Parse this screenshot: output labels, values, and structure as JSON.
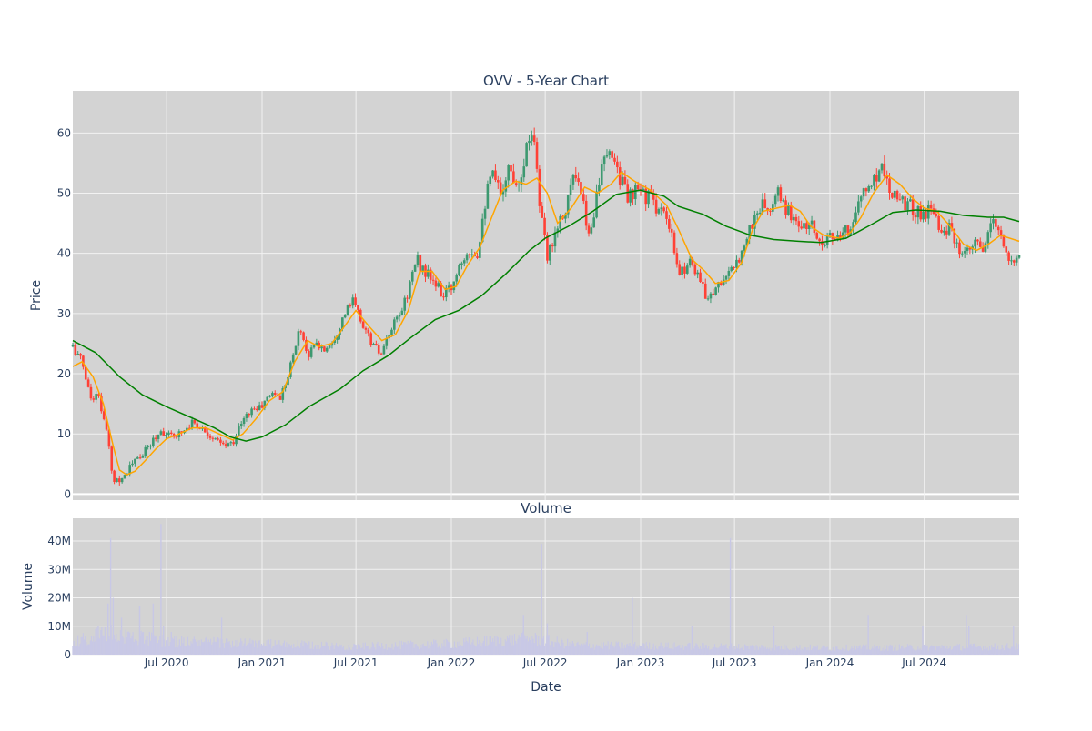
{
  "colors": {
    "plot_bg": "#d3d3d3",
    "grid": "#f2f2f2",
    "text": "#2a3f5f",
    "up": "#3d9970",
    "down": "#ff4136",
    "ma_short": "#ffa500",
    "ma_long": "#008000",
    "volume": "#c8c8e6"
  },
  "chart_data": [
    {
      "type": "candlestick",
      "title": "OVV - 5-Year Chart",
      "ylabel": "Price",
      "ylim": [
        -1,
        67
      ],
      "yticks": [
        0,
        10,
        20,
        30,
        40,
        50,
        60
      ],
      "xlim": [
        "2020-01-02",
        "2024-12-31"
      ],
      "xticks": [
        {
          "date": "2020-07-01",
          "label": "Jul 2020"
        },
        {
          "date": "2021-01-01",
          "label": "Jan 2021"
        },
        {
          "date": "2021-07-01",
          "label": "Jul 2021"
        },
        {
          "date": "2022-01-01",
          "label": "Jan 2022"
        },
        {
          "date": "2022-07-01",
          "label": "Jul 2022"
        },
        {
          "date": "2023-01-01",
          "label": "Jan 2023"
        },
        {
          "date": "2023-07-01",
          "label": "Jul 2023"
        },
        {
          "date": "2024-01-01",
          "label": "Jan 2024"
        },
        {
          "date": "2024-07-01",
          "label": "Jul 2024"
        }
      ],
      "grid": true,
      "close_series": [
        [
          "2020-01-02",
          24.5
        ],
        [
          "2020-01-20",
          22.0
        ],
        [
          "2020-02-05",
          16.0
        ],
        [
          "2020-02-20",
          16.5
        ],
        [
          "2020-03-05",
          11.0
        ],
        [
          "2020-03-12",
          8.0
        ],
        [
          "2020-03-18",
          2.6
        ],
        [
          "2020-03-30",
          2.5
        ],
        [
          "2020-04-10",
          3.0
        ],
        [
          "2020-04-25",
          5.0
        ],
        [
          "2020-05-15",
          6.5
        ],
        [
          "2020-06-05",
          9.0
        ],
        [
          "2020-06-20",
          10.5
        ],
        [
          "2020-07-10",
          9.5
        ],
        [
          "2020-08-01",
          10.5
        ],
        [
          "2020-08-20",
          12.0
        ],
        [
          "2020-09-15",
          10.5
        ],
        [
          "2020-10-01",
          9.0
        ],
        [
          "2020-10-20",
          8.0
        ],
        [
          "2020-11-05",
          8.5
        ],
        [
          "2020-11-20",
          11.5
        ],
        [
          "2020-12-10",
          14.0
        ],
        [
          "2020-12-31",
          14.5
        ],
        [
          "2021-01-20",
          17.0
        ],
        [
          "2021-02-05",
          16.0
        ],
        [
          "2021-02-20",
          20.0
        ],
        [
          "2021-03-05",
          24.0
        ],
        [
          "2021-03-15",
          28.0
        ],
        [
          "2021-03-30",
          23.0
        ],
        [
          "2021-04-15",
          25.0
        ],
        [
          "2021-05-01",
          24.0
        ],
        [
          "2021-05-20",
          26.0
        ],
        [
          "2021-06-10",
          30.0
        ],
        [
          "2021-06-25",
          32.0
        ],
        [
          "2021-07-15",
          28.0
        ],
        [
          "2021-08-01",
          25.0
        ],
        [
          "2021-08-20",
          23.0
        ],
        [
          "2021-09-05",
          27.0
        ],
        [
          "2021-09-25",
          30.0
        ],
        [
          "2021-10-10",
          34.0
        ],
        [
          "2021-10-25",
          39.0
        ],
        [
          "2021-11-10",
          37.0
        ],
        [
          "2021-11-30",
          35.0
        ],
        [
          "2021-12-15",
          33.0
        ],
        [
          "2021-12-31",
          34.0
        ],
        [
          "2022-01-15",
          38.0
        ],
        [
          "2022-02-01",
          41.0
        ],
        [
          "2022-02-20",
          40.0
        ],
        [
          "2022-03-05",
          48.0
        ],
        [
          "2022-03-20",
          53.0
        ],
        [
          "2022-04-05",
          50.0
        ],
        [
          "2022-04-20",
          54.0
        ],
        [
          "2022-05-10",
          52.0
        ],
        [
          "2022-05-25",
          57.0
        ],
        [
          "2022-06-08",
          62.0
        ],
        [
          "2022-06-20",
          48.0
        ],
        [
          "2022-07-05",
          39.0
        ],
        [
          "2022-07-20",
          44.0
        ],
        [
          "2022-08-10",
          48.0
        ],
        [
          "2022-08-25",
          53.0
        ],
        [
          "2022-09-10",
          49.0
        ],
        [
          "2022-09-25",
          42.0
        ],
        [
          "2022-10-10",
          52.0
        ],
        [
          "2022-10-25",
          55.0
        ],
        [
          "2022-11-08",
          57.0
        ],
        [
          "2022-11-25",
          52.0
        ],
        [
          "2022-12-10",
          49.0
        ],
        [
          "2022-12-31",
          50.5
        ],
        [
          "2023-01-20",
          49.0
        ],
        [
          "2023-02-10",
          47.0
        ],
        [
          "2023-03-01",
          43.0
        ],
        [
          "2023-03-15",
          36.0
        ],
        [
          "2023-04-05",
          39.0
        ],
        [
          "2023-04-20",
          37.0
        ],
        [
          "2023-05-05",
          33.0
        ],
        [
          "2023-05-25",
          34.0
        ],
        [
          "2023-06-10",
          36.0
        ],
        [
          "2023-06-30",
          37.0
        ],
        [
          "2023-07-20",
          42.0
        ],
        [
          "2023-08-05",
          45.0
        ],
        [
          "2023-08-20",
          48.0
        ],
        [
          "2023-09-10",
          47.0
        ],
        [
          "2023-09-25",
          50.0
        ],
        [
          "2023-10-10",
          47.0
        ],
        [
          "2023-10-25",
          46.0
        ],
        [
          "2023-11-10",
          44.0
        ],
        [
          "2023-11-25",
          45.0
        ],
        [
          "2023-12-10",
          42.0
        ],
        [
          "2023-12-31",
          43.0
        ],
        [
          "2024-01-20",
          42.0
        ],
        [
          "2024-02-05",
          44.0
        ],
        [
          "2024-02-20",
          47.0
        ],
        [
          "2024-03-05",
          50.0
        ],
        [
          "2024-03-25",
          52.0
        ],
        [
          "2024-04-10",
          55.0
        ],
        [
          "2024-04-25",
          51.0
        ],
        [
          "2024-05-10",
          50.0
        ],
        [
          "2024-05-30",
          48.0
        ],
        [
          "2024-06-15",
          47.0
        ],
        [
          "2024-07-01",
          46.5
        ],
        [
          "2024-07-20",
          48.0
        ],
        [
          "2024-08-05",
          43.0
        ],
        [
          "2024-08-20",
          44.0
        ],
        [
          "2024-09-10",
          39.0
        ],
        [
          "2024-09-25",
          40.0
        ],
        [
          "2024-10-10",
          42.0
        ],
        [
          "2024-10-25",
          40.0
        ],
        [
          "2024-11-10",
          46.0
        ],
        [
          "2024-11-25",
          43.0
        ],
        [
          "2024-12-10",
          38.0
        ],
        [
          "2024-12-31",
          40.0
        ]
      ],
      "ma_short": [
        [
          "2020-01-02",
          21.2
        ],
        [
          "2020-01-20",
          22.0
        ],
        [
          "2020-02-10",
          19.5
        ],
        [
          "2020-03-01",
          15.0
        ],
        [
          "2020-03-20",
          8.0
        ],
        [
          "2020-04-01",
          4.0
        ],
        [
          "2020-04-15",
          3.2
        ],
        [
          "2020-05-01",
          3.8
        ],
        [
          "2020-05-20",
          5.5
        ],
        [
          "2020-06-10",
          7.5
        ],
        [
          "2020-07-01",
          9.2
        ],
        [
          "2020-07-25",
          10.0
        ],
        [
          "2020-08-20",
          11.0
        ],
        [
          "2020-09-15",
          11.0
        ],
        [
          "2020-10-10",
          10.0
        ],
        [
          "2020-11-05",
          9.0
        ],
        [
          "2020-11-25",
          10.0
        ],
        [
          "2020-12-20",
          12.5
        ],
        [
          "2021-01-15",
          15.5
        ],
        [
          "2021-02-10",
          17.0
        ],
        [
          "2021-03-05",
          22.0
        ],
        [
          "2021-03-30",
          25.5
        ],
        [
          "2021-04-20",
          24.5
        ],
        [
          "2021-05-15",
          25.0
        ],
        [
          "2021-06-10",
          28.0
        ],
        [
          "2021-07-01",
          30.5
        ],
        [
          "2021-07-25",
          28.0
        ],
        [
          "2021-08-20",
          25.5
        ],
        [
          "2021-09-15",
          26.5
        ],
        [
          "2021-10-10",
          30.5
        ],
        [
          "2021-11-01",
          37.0
        ],
        [
          "2021-11-25",
          37.0
        ],
        [
          "2021-12-20",
          34.0
        ],
        [
          "2022-01-10",
          34.5
        ],
        [
          "2022-02-01",
          38.0
        ],
        [
          "2022-02-25",
          41.0
        ],
        [
          "2022-03-20",
          46.0
        ],
        [
          "2022-04-10",
          50.5
        ],
        [
          "2022-05-05",
          52.0
        ],
        [
          "2022-05-25",
          51.5
        ],
        [
          "2022-06-15",
          52.5
        ],
        [
          "2022-07-05",
          50.0
        ],
        [
          "2022-07-25",
          45.0
        ],
        [
          "2022-08-20",
          47.5
        ],
        [
          "2022-09-15",
          51.0
        ],
        [
          "2022-10-10",
          50.0
        ],
        [
          "2022-11-05",
          51.5
        ],
        [
          "2022-11-25",
          53.5
        ],
        [
          "2022-12-20",
          52.0
        ],
        [
          "2023-01-20",
          50.5
        ],
        [
          "2023-02-20",
          48.0
        ],
        [
          "2023-03-15",
          44.0
        ],
        [
          "2023-04-10",
          39.0
        ],
        [
          "2023-05-05",
          37.0
        ],
        [
          "2023-05-25",
          35.0
        ],
        [
          "2023-06-20",
          35.5
        ],
        [
          "2023-07-15",
          38.5
        ],
        [
          "2023-08-05",
          44.0
        ],
        [
          "2023-08-25",
          47.0
        ],
        [
          "2023-09-20",
          47.5
        ],
        [
          "2023-10-15",
          48.0
        ],
        [
          "2023-11-05",
          47.0
        ],
        [
          "2023-11-25",
          44.5
        ],
        [
          "2023-12-20",
          43.0
        ],
        [
          "2024-01-20",
          42.5
        ],
        [
          "2024-02-10",
          43.5
        ],
        [
          "2024-03-01",
          46.0
        ],
        [
          "2024-03-25",
          50.0
        ],
        [
          "2024-04-20",
          53.0
        ],
        [
          "2024-05-15",
          51.5
        ],
        [
          "2024-06-10",
          49.0
        ],
        [
          "2024-07-01",
          47.5
        ],
        [
          "2024-07-25",
          47.0
        ],
        [
          "2024-08-20",
          44.5
        ],
        [
          "2024-09-15",
          41.5
        ],
        [
          "2024-10-10",
          40.5
        ],
        [
          "2024-11-01",
          41.5
        ],
        [
          "2024-11-25",
          43.0
        ],
        [
          "2024-12-31",
          42.0
        ]
      ],
      "ma_long": [
        [
          "2020-01-02",
          25.5
        ],
        [
          "2020-02-15",
          23.5
        ],
        [
          "2020-04-01",
          19.5
        ],
        [
          "2020-05-15",
          16.5
        ],
        [
          "2020-07-01",
          14.5
        ],
        [
          "2020-08-15",
          12.8
        ],
        [
          "2020-10-01",
          11.0
        ],
        [
          "2020-11-01",
          9.5
        ],
        [
          "2020-12-01",
          8.8
        ],
        [
          "2021-01-01",
          9.5
        ],
        [
          "2021-02-15",
          11.5
        ],
        [
          "2021-04-01",
          14.5
        ],
        [
          "2021-06-01",
          17.5
        ],
        [
          "2021-07-15",
          20.5
        ],
        [
          "2021-09-01",
          23.0
        ],
        [
          "2021-10-15",
          26.0
        ],
        [
          "2021-12-01",
          29.0
        ],
        [
          "2022-01-15",
          30.5
        ],
        [
          "2022-03-01",
          33.0
        ],
        [
          "2022-04-15",
          36.5
        ],
        [
          "2022-06-01",
          40.5
        ],
        [
          "2022-07-01",
          42.5
        ],
        [
          "2022-08-15",
          44.5
        ],
        [
          "2022-10-01",
          47.0
        ],
        [
          "2022-11-15",
          49.8
        ],
        [
          "2022-12-31",
          50.5
        ],
        [
          "2023-02-15",
          49.5
        ],
        [
          "2023-03-15",
          47.8
        ],
        [
          "2023-05-01",
          46.5
        ],
        [
          "2023-06-15",
          44.5
        ],
        [
          "2023-08-01",
          43.0
        ],
        [
          "2023-09-15",
          42.3
        ],
        [
          "2023-11-01",
          42.0
        ],
        [
          "2023-12-15",
          41.8
        ],
        [
          "2024-02-01",
          42.5
        ],
        [
          "2024-03-15",
          44.5
        ],
        [
          "2024-05-01",
          46.8
        ],
        [
          "2024-06-15",
          47.2
        ],
        [
          "2024-08-01",
          47.0
        ],
        [
          "2024-09-15",
          46.3
        ],
        [
          "2024-11-01",
          46.0
        ],
        [
          "2024-12-01",
          46.0
        ],
        [
          "2024-12-31",
          45.3
        ]
      ]
    },
    {
      "type": "bar",
      "title": "Volume",
      "xlabel": "Date",
      "ylabel": "Volume",
      "ylim": [
        0,
        48000000
      ],
      "yticks": [
        {
          "value": 0,
          "label": "0"
        },
        {
          "value": 10000000,
          "label": "10M"
        },
        {
          "value": 20000000,
          "label": "20M"
        },
        {
          "value": 30000000,
          "label": "30M"
        },
        {
          "value": 40000000,
          "label": "40M"
        }
      ],
      "grid": true,
      "spikes": [
        [
          "2020-02-20",
          10000000
        ],
        [
          "2020-03-10",
          18000000
        ],
        [
          "2020-03-15",
          41000000
        ],
        [
          "2020-03-20",
          20000000
        ],
        [
          "2020-04-05",
          13000000
        ],
        [
          "2020-05-10",
          17000000
        ],
        [
          "2020-06-05",
          18000000
        ],
        [
          "2020-06-20",
          46000000
        ],
        [
          "2020-06-25",
          10000000
        ],
        [
          "2020-07-10",
          8000000
        ],
        [
          "2020-10-15",
          13000000
        ],
        [
          "2022-05-20",
          14000000
        ],
        [
          "2022-06-24",
          39000000
        ],
        [
          "2022-07-05",
          11000000
        ],
        [
          "2022-09-20",
          8000000
        ],
        [
          "2022-12-16",
          20000000
        ],
        [
          "2023-04-10",
          10000000
        ],
        [
          "2023-06-23",
          41000000
        ],
        [
          "2023-09-15",
          10000000
        ],
        [
          "2024-03-15",
          14000000
        ],
        [
          "2024-06-28",
          10000000
        ],
        [
          "2024-09-20",
          14000000
        ],
        [
          "2024-09-25",
          10000000
        ],
        [
          "2024-12-20",
          10000000
        ]
      ],
      "base_volume_levels": [
        [
          "2020-01-02",
          4500000
        ],
        [
          "2020-03-01",
          8000000
        ],
        [
          "2020-07-01",
          5000000
        ],
        [
          "2021-01-01",
          4000000
        ],
        [
          "2021-07-01",
          3000000
        ],
        [
          "2022-01-01",
          4000000
        ],
        [
          "2022-06-01",
          6000000
        ],
        [
          "2022-09-01",
          3500000
        ],
        [
          "2023-06-01",
          3000000
        ],
        [
          "2024-01-01",
          2500000
        ],
        [
          "2024-12-31",
          3000000
        ]
      ]
    }
  ]
}
